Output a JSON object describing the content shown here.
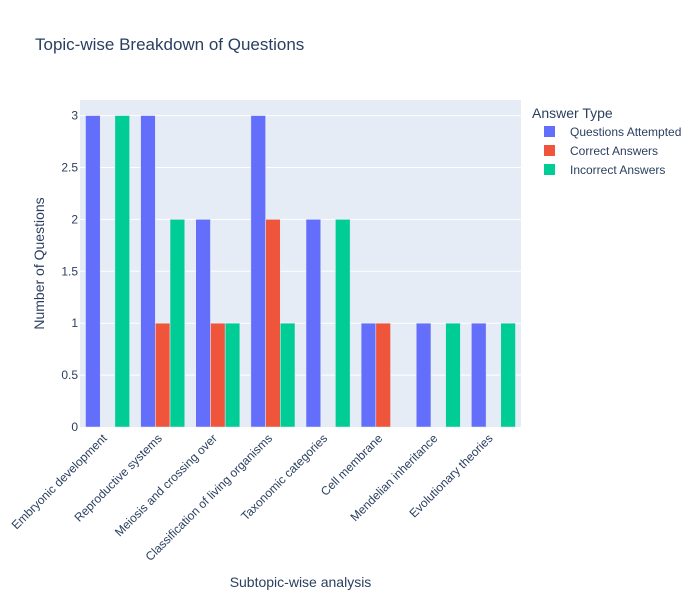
{
  "chart_data": {
    "type": "bar",
    "title": "Topic-wise Breakdown of Questions",
    "xlabel": "Subtopic-wise analysis",
    "ylabel": "Number of Questions",
    "ylim": [
      0,
      3.15
    ],
    "yticks": [
      0,
      0.5,
      1,
      1.5,
      2,
      2.5,
      3
    ],
    "ytick_labels": [
      "0",
      "0.5",
      "1",
      "1.5",
      "2",
      "2.5",
      "3"
    ],
    "grid": true,
    "legend": {
      "title": "Answer Type",
      "placement": "top-right"
    },
    "categories": [
      "Embryonic development",
      "Reproductive systems",
      "Meiosis and crossing over",
      "Classification of living organisms",
      "Taxonomic categories",
      "Cell membrane",
      "Mendelian inheritance",
      "Evolutionary theories"
    ],
    "series": [
      {
        "name": "Questions Attempted",
        "color": "#636efa",
        "values": [
          3,
          3,
          2,
          3,
          2,
          1,
          1,
          1
        ]
      },
      {
        "name": "Correct Answers",
        "color": "#ef553b",
        "values": [
          0,
          1,
          1,
          2,
          0,
          1,
          0,
          0
        ]
      },
      {
        "name": "Incorrect Answers",
        "color": "#00cc96",
        "values": [
          3,
          2,
          1,
          1,
          2,
          0,
          1,
          1
        ]
      }
    ],
    "plot_background": "#e5ecf6"
  }
}
